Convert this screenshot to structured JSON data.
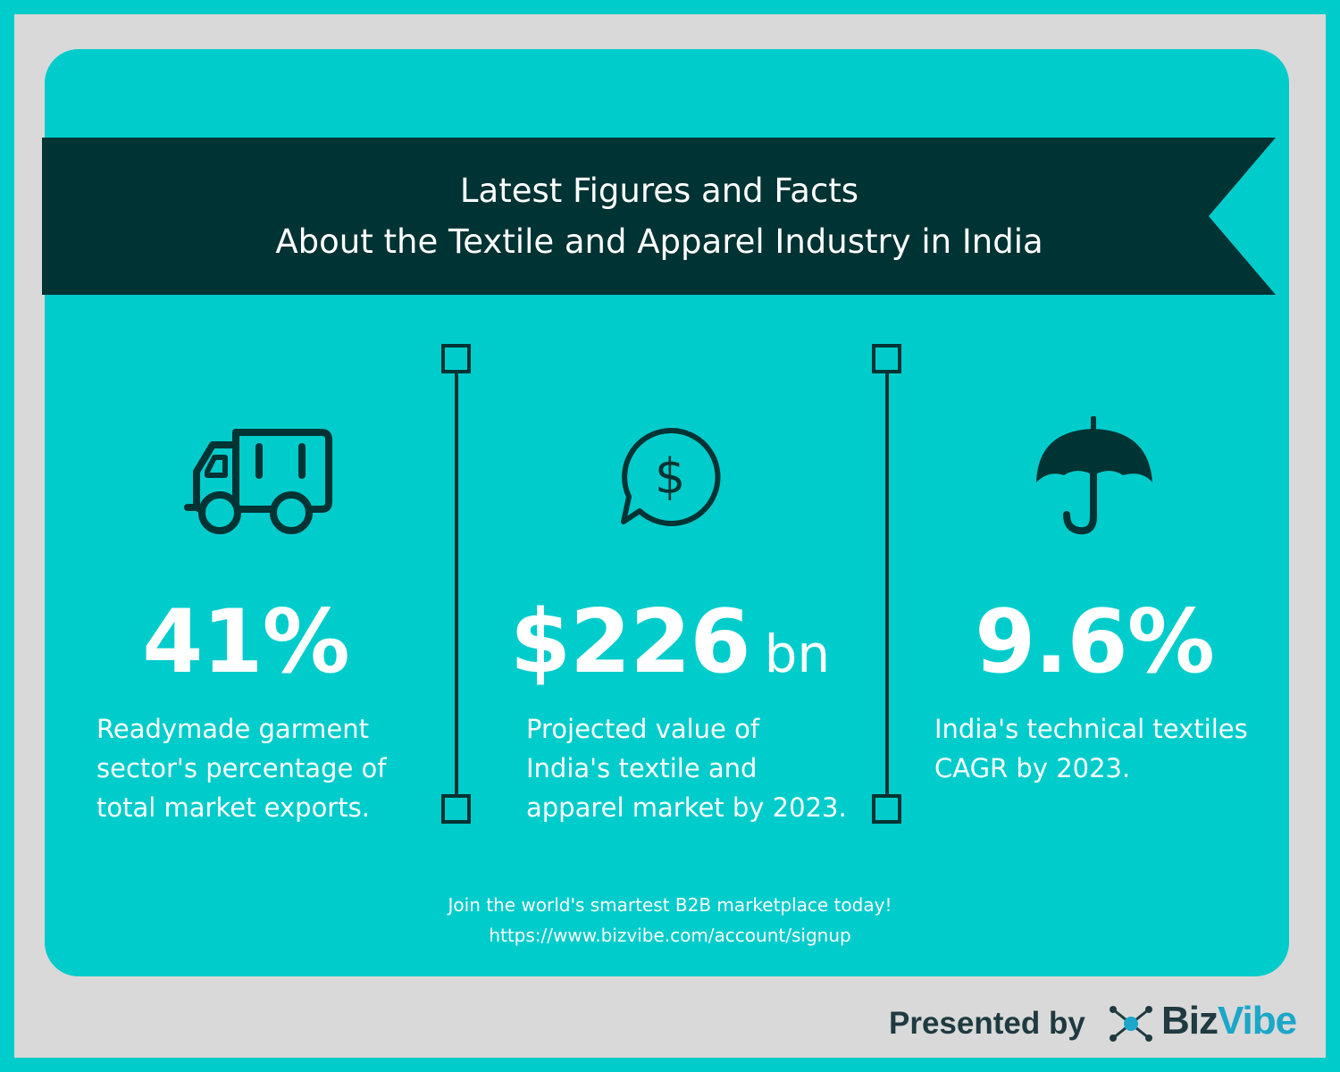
{
  "banner": {
    "title_line1": "Latest Figures and Facts",
    "title_line2": "About the Textile and Apparel Industry in India"
  },
  "stats": [
    {
      "icon": "delivery-truck-icon",
      "value": "41%",
      "unit": "",
      "description_lines": [
        "Readymade garment",
        "sector's percentage of",
        "total market exports."
      ]
    },
    {
      "icon": "dollar-speech-bubble-icon",
      "value": "$226",
      "unit": "bn",
      "description_lines": [
        "Projected value of",
        "India's textile and",
        "apparel market by 2023."
      ]
    },
    {
      "icon": "umbrella-icon",
      "value": "9.6%",
      "unit": "",
      "description_lines": [
        "India's technical textiles",
        "CAGR by 2023."
      ]
    }
  ],
  "footer": {
    "line1": "Join the world's smartest B2B marketplace today!",
    "line2": "https://www.bizvibe.com/account/signup"
  },
  "credit": {
    "presented_by": "Presented by",
    "brand_part1": "Biz",
    "brand_part2": "Vibe"
  },
  "colors": {
    "teal": "#00cccc",
    "dark": "#003333",
    "frame_gray": "#d9d9d9",
    "brand_dark": "#1f3a40",
    "brand_blue": "#1aa7c9"
  }
}
